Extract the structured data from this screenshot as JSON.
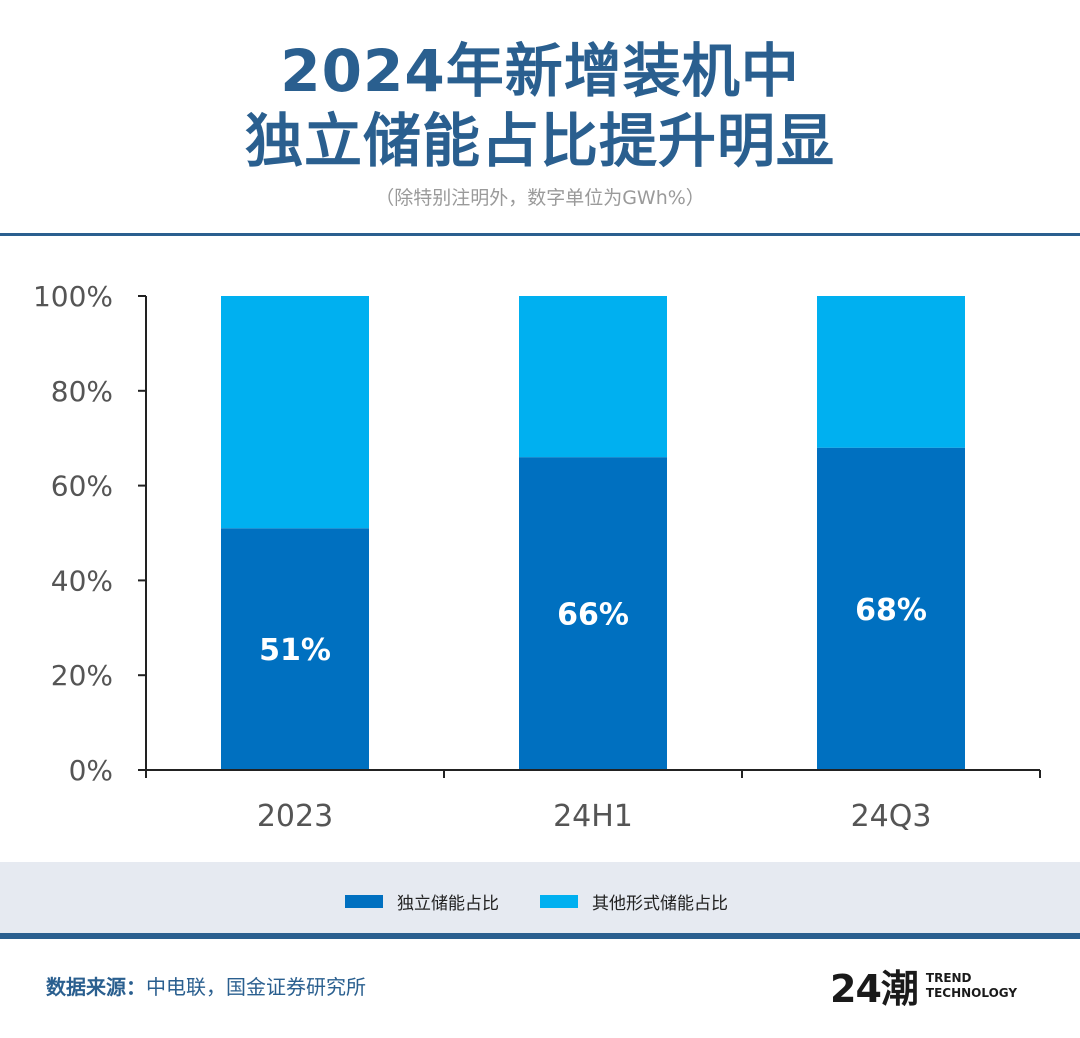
{
  "header": {
    "title_line1": "2024年新增装机中",
    "title_line2": "独立储能占比提升明显",
    "subtitle": "（除特别注明外，数字单位为GWh%）"
  },
  "colors": {
    "title": "#2a5f8f",
    "independent": "#0070c0",
    "other": "#00b0f0",
    "legend_band": "#e6eaf1"
  },
  "chart_data": {
    "type": "bar",
    "stacked": true,
    "categories": [
      "2023",
      "24H1",
      "24Q3"
    ],
    "series": [
      {
        "name": "独立储能占比",
        "values": [
          51,
          66,
          68
        ],
        "labels": [
          "51%",
          "66%",
          "68%"
        ],
        "color": "#0070c0"
      },
      {
        "name": "其他形式储能占比",
        "values": [
          49,
          34,
          32
        ],
        "color": "#00b0f0"
      }
    ],
    "yticks": [
      "0%",
      "20%",
      "40%",
      "60%",
      "80%",
      "100%"
    ],
    "ylim": [
      0,
      100
    ],
    "legend_position": "bottom",
    "grid": false
  },
  "footer": {
    "source_label": "数据来源：",
    "source_text": "中电联，国金证券研究所",
    "logo_mark": "24潮",
    "logo_line1": "TREND",
    "logo_line2": "TECHNOLOGY"
  }
}
